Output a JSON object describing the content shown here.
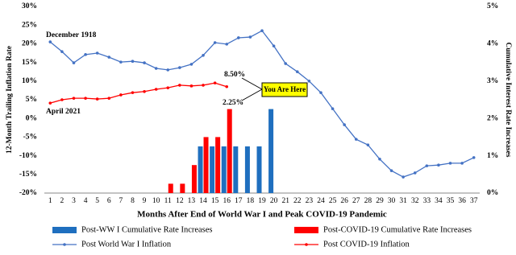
{
  "chart_data": {
    "type": "combo",
    "y_label": "12-Month Trailing Inflation Rate",
    "y2_label": "Cumulative Interest Rate Increases",
    "x_label": "Months After End of World War I and Peak COVID-19 Pandemic",
    "categories": [
      1,
      2,
      3,
      4,
      5,
      6,
      7,
      8,
      9,
      10,
      11,
      12,
      13,
      14,
      15,
      16,
      17,
      18,
      19,
      20,
      21,
      22,
      23,
      24,
      25,
      26,
      27,
      28,
      29,
      30,
      31,
      32,
      33,
      34,
      35,
      36,
      37
    ],
    "ylim": [
      -20,
      30
    ],
    "yticks": [
      {
        "value": -20,
        "label": "-20%"
      },
      {
        "value": -15,
        "label": "-15%"
      },
      {
        "value": -10,
        "label": "-10%"
      },
      {
        "value": -5,
        "label": "-5%"
      },
      {
        "value": 0,
        "label": "0%"
      },
      {
        "value": 5,
        "label": "5%"
      },
      {
        "value": 10,
        "label": "10%"
      },
      {
        "value": 15,
        "label": "15%"
      },
      {
        "value": 20,
        "label": "20%"
      },
      {
        "value": 25,
        "label": "25%"
      },
      {
        "value": 30,
        "label": "30%"
      }
    ],
    "y2lim": [
      0,
      5
    ],
    "y2ticks": [
      {
        "value": 0,
        "label": "0%"
      },
      {
        "value": 1,
        "label": "1%"
      },
      {
        "value": 2,
        "label": "2%"
      },
      {
        "value": 3,
        "label": "3%"
      },
      {
        "value": 4,
        "label": "4%"
      },
      {
        "value": 5,
        "label": "5%"
      }
    ],
    "series": [
      {
        "name": "Post-WW I Cumulative Rate Increases",
        "type": "bar",
        "axis": "y2",
        "color": "#1f6fbf",
        "values": [
          null,
          null,
          null,
          null,
          null,
          null,
          null,
          null,
          null,
          null,
          null,
          null,
          null,
          1.25,
          1.25,
          1.25,
          1.25,
          1.25,
          1.25,
          2.25,
          null,
          null,
          null,
          null,
          null,
          null,
          null,
          null,
          null,
          null,
          null,
          null,
          null,
          null,
          null,
          null,
          null
        ]
      },
      {
        "name": "Post-COVID-19 Cumulative Rate Increases",
        "type": "bar",
        "axis": "y2",
        "color": "#ff0000",
        "values": [
          null,
          null,
          null,
          null,
          null,
          null,
          null,
          null,
          null,
          null,
          0.25,
          0.25,
          0.75,
          1.5,
          1.5,
          2.25,
          null,
          null,
          null,
          null,
          null,
          null,
          null,
          null,
          null,
          null,
          null,
          null,
          null,
          null,
          null,
          null,
          null,
          null,
          null,
          null,
          null
        ]
      },
      {
        "name": "Post World War I Inflation",
        "type": "line",
        "color": "#4472c4",
        "values": [
          20.5,
          17.9,
          14.9,
          17.1,
          17.5,
          16.4,
          15.1,
          15.3,
          14.9,
          13.4,
          13.0,
          13.6,
          14.5,
          16.9,
          20.3,
          19.9,
          21.6,
          21.8,
          23.5,
          19.4,
          14.7,
          12.5,
          10.0,
          6.9,
          2.6,
          -1.7,
          -5.6,
          -7.1,
          -10.9,
          -14.0,
          -15.7,
          -14.6,
          -12.7,
          -12.5,
          -12.0,
          -12.0,
          -10.5
        ]
      },
      {
        "name": "Post COVID-19 Inflation",
        "type": "line",
        "color": "#ff0000",
        "values": [
          4.1,
          5.0,
          5.4,
          5.4,
          5.2,
          5.4,
          6.3,
          6.9,
          7.2,
          7.8,
          8.2,
          8.9,
          8.7,
          8.9,
          9.5,
          8.5,
          null,
          null,
          null,
          null,
          null,
          null,
          null,
          null,
          null,
          null,
          null,
          null,
          null,
          null,
          null,
          null,
          null,
          null,
          null,
          null,
          null
        ]
      }
    ],
    "annotations": [
      "December 1918",
      "April 2021",
      "8.50%",
      "2.25%",
      "You Are Here"
    ]
  }
}
